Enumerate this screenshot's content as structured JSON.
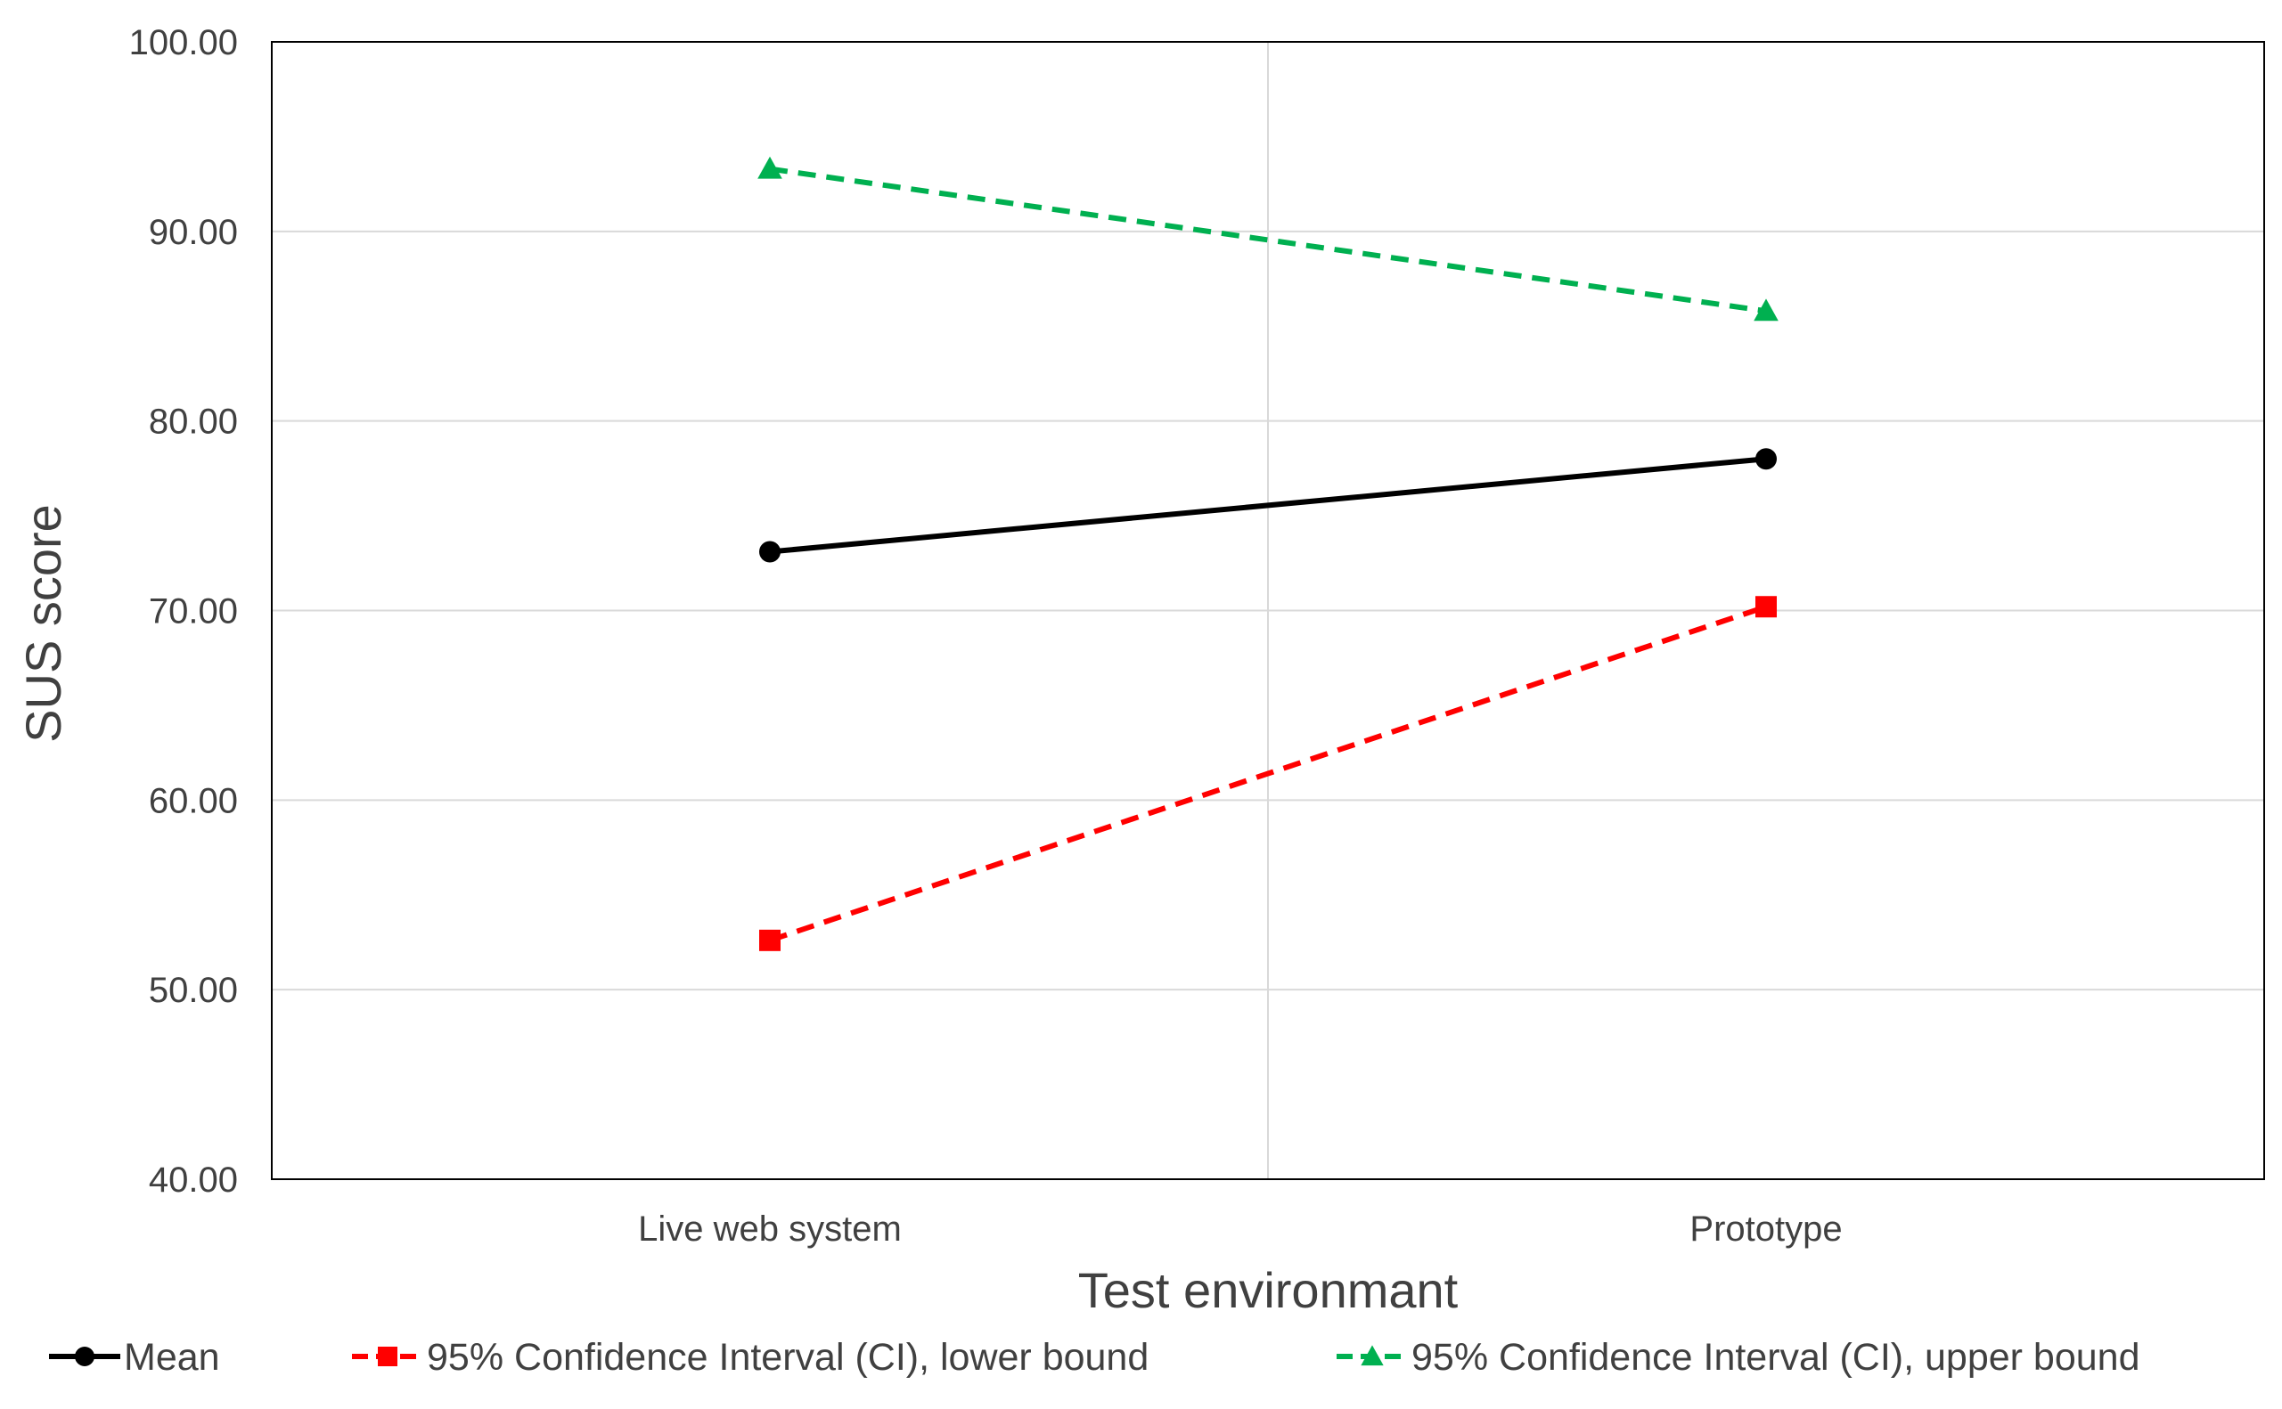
{
  "chart_data": {
    "type": "line",
    "title": "",
    "xlabel": "Test environmant",
    "ylabel": "SUS score",
    "categories": [
      "Live web system",
      "Prototype"
    ],
    "ylim": [
      40,
      100
    ],
    "yticks": [
      "40.00",
      "50.00",
      "60.00",
      "70.00",
      "80.00",
      "90.00",
      "100.00"
    ],
    "grid": true,
    "legend_position": "bottom",
    "series": [
      {
        "name": "Mean",
        "values": [
          73.1,
          78.0
        ],
        "color": "#000000",
        "dash": "solid",
        "marker": "circle"
      },
      {
        "name": "95% Confidence Interval (CI), lower bound",
        "values": [
          52.6,
          70.2
        ],
        "color": "#ff0000",
        "dash": "dashed",
        "marker": "square"
      },
      {
        "name": "95% Confidence Interval (CI), upper bound",
        "values": [
          93.3,
          85.8
        ],
        "color": "#00b050",
        "dash": "dashed",
        "marker": "triangle"
      }
    ]
  }
}
